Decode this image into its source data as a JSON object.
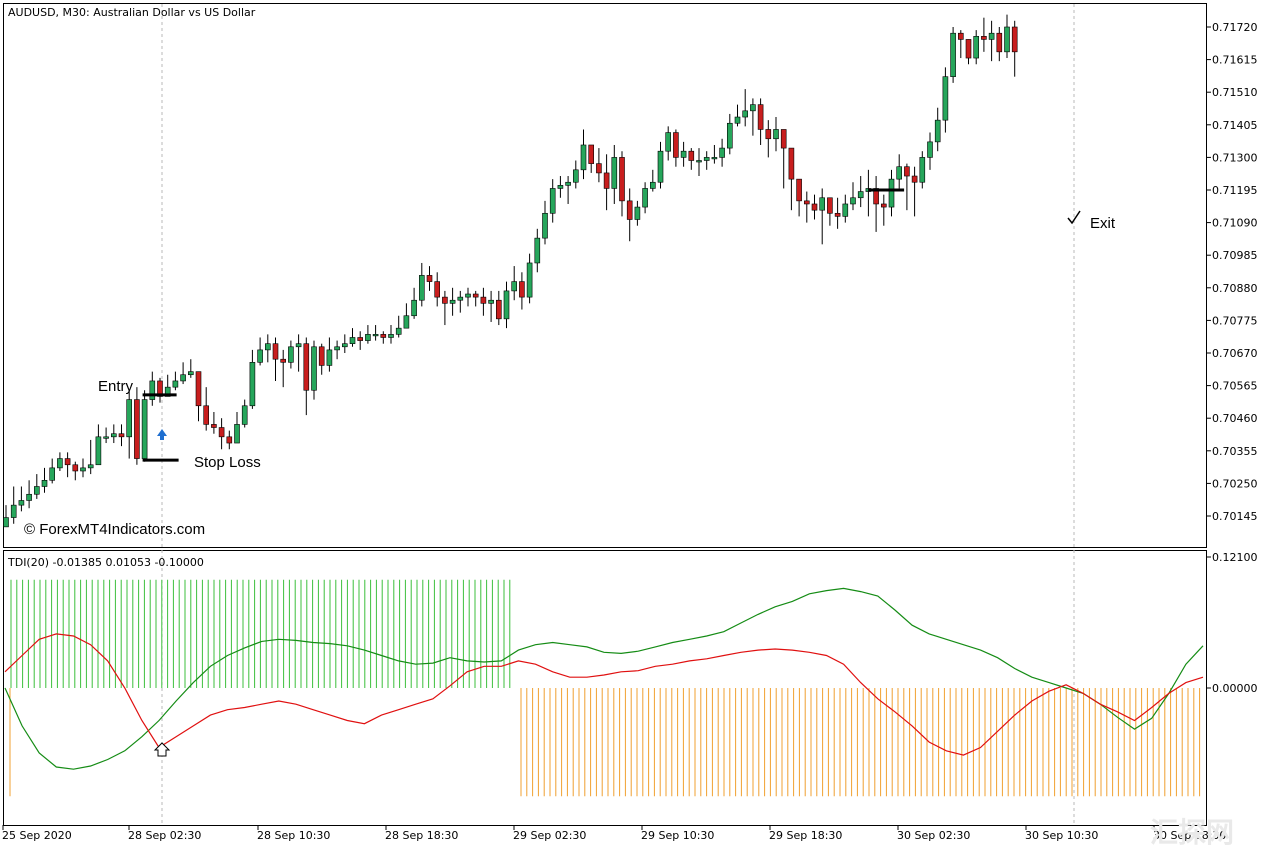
{
  "chart_data": [
    {
      "type": "candlestick",
      "title": "AUDUSD, M30:  Australian Dollar vs US Dollar",
      "ylim": [
        0.7009,
        0.71775
      ],
      "y_ticks": [
        "0.71720",
        "0.71615",
        "0.71510",
        "0.71405",
        "0.71300",
        "0.71195",
        "0.71090",
        "0.70985",
        "0.70880",
        "0.70775",
        "0.70670",
        "0.70565",
        "0.70460",
        "0.70355",
        "0.70250",
        "0.70145"
      ],
      "x_ticks": [
        "25 Sep 2020",
        "28 Sep 02:30",
        "28 Sep 10:30",
        "28 Sep 18:30",
        "29 Sep 02:30",
        "29 Sep 10:30",
        "29 Sep 18:30",
        "30 Sep 02:30",
        "30 Sep 10:30",
        "30 Sep 18:30"
      ],
      "series": [
        {
          "name": "price",
          "close": [
            0.7014,
            0.7018,
            0.70195,
            0.70215,
            0.7024,
            0.7026,
            0.703,
            0.7033,
            0.7031,
            0.7029,
            0.703,
            0.7031,
            0.704,
            0.704,
            0.7041,
            0.704,
            0.7052,
            0.7033,
            0.7052,
            0.7058,
            0.7053,
            0.7056,
            0.7058,
            0.706,
            0.7061,
            0.705,
            0.7044,
            0.7043,
            0.704,
            0.7038,
            0.7044,
            0.705,
            0.7064,
            0.7068,
            0.707,
            0.7065,
            0.7064,
            0.7069,
            0.707,
            0.7055,
            0.7069,
            0.7063,
            0.7068,
            0.7069,
            0.707,
            0.7072,
            0.7071,
            0.7073,
            0.7073,
            0.7072,
            0.7073,
            0.7075,
            0.7079,
            0.7084,
            0.7092,
            0.709,
            0.7085,
            0.7083,
            0.7084,
            0.7085,
            0.7086,
            0.7085,
            0.7083,
            0.7084,
            0.7078,
            0.7087,
            0.709,
            0.7085,
            0.7096,
            0.7104,
            0.7112,
            0.712,
            0.7121,
            0.7122,
            0.7126,
            0.7134,
            0.7128,
            0.7125,
            0.712,
            0.713,
            0.7116,
            0.711,
            0.7114,
            0.712,
            0.7122,
            0.7132,
            0.7138,
            0.713,
            0.7132,
            0.7129,
            0.7129,
            0.713,
            0.713,
            0.7133,
            0.7141,
            0.7143,
            0.7145,
            0.7147,
            0.7139,
            0.7136,
            0.7139,
            0.7133,
            0.7123,
            0.7116,
            0.7115,
            0.7113,
            0.7117,
            0.7112,
            0.7111,
            0.7115,
            0.7117,
            0.7119,
            0.712,
            0.7115,
            0.7114,
            0.7123,
            0.7127,
            0.7124,
            0.7122,
            0.713,
            0.7135,
            0.7142,
            0.7156,
            0.717,
            0.7168,
            0.7162,
            0.7169,
            0.7168,
            0.717,
            0.7164,
            0.7172,
            0.7164
          ]
        },
        {
          "name": "upper",
          "values": [
            0.7018,
            0.7024,
            0.7024,
            0.7026,
            0.7028,
            0.703,
            0.7033,
            0.7035,
            0.7035,
            0.7032,
            0.7033,
            0.7039,
            0.7044,
            0.7043,
            0.7044,
            0.7044,
            0.7055,
            0.7056,
            0.7055,
            0.7061,
            0.7059,
            0.706,
            0.7061,
            0.7064,
            0.7065,
            0.706,
            0.7056,
            0.7048,
            0.7046,
            0.7042,
            0.7048,
            0.7052,
            0.7068,
            0.7072,
            0.7073,
            0.7072,
            0.7068,
            0.7071,
            0.7073,
            0.7072,
            0.7071,
            0.707,
            0.7072,
            0.7071,
            0.7073,
            0.7075,
            0.7074,
            0.7076,
            0.7076,
            0.7074,
            0.7076,
            0.7079,
            0.7083,
            0.7088,
            0.7096,
            0.7095,
            0.7093,
            0.7087,
            0.7088,
            0.7087,
            0.7088,
            0.7087,
            0.7088,
            0.7087,
            0.7087,
            0.709,
            0.7095,
            0.7093,
            0.7099,
            0.7107,
            0.7116,
            0.7123,
            0.7124,
            0.7124,
            0.7129,
            0.7139,
            0.7134,
            0.7133,
            0.7131,
            0.7134,
            0.7132,
            0.712,
            0.7116,
            0.7122,
            0.7126,
            0.7135,
            0.714,
            0.7139,
            0.7135,
            0.7133,
            0.7133,
            0.7132,
            0.7134,
            0.7136,
            0.7144,
            0.7147,
            0.7152,
            0.7149,
            0.7149,
            0.7142,
            0.7143,
            0.7138,
            0.7133,
            0.712,
            0.7119,
            0.7118,
            0.712,
            0.7115,
            0.7117,
            0.7118,
            0.7122,
            0.7124,
            0.7126,
            0.7124,
            0.7118,
            0.7126,
            0.7131,
            0.7128,
            0.7127,
            0.7132,
            0.7138,
            0.7146,
            0.7159,
            0.7172,
            0.7171,
            0.7168,
            0.7171,
            0.7175,
            0.7174,
            0.7172,
            0.7176,
            0.7174
          ]
        },
        {
          "name": "lower",
          "values": [
            0.7011,
            0.7012,
            0.7016,
            0.7017,
            0.702,
            0.7022,
            0.7025,
            0.7029,
            0.7027,
            0.7026,
            0.7027,
            0.7028,
            0.7032,
            0.7038,
            0.7038,
            0.7037,
            0.7033,
            0.7031,
            0.7032,
            0.705,
            0.7051,
            0.7053,
            0.7055,
            0.7057,
            0.7059,
            0.7045,
            0.7042,
            0.7041,
            0.7036,
            0.7036,
            0.7038,
            0.7043,
            0.7049,
            0.7063,
            0.7064,
            0.7058,
            0.7056,
            0.7062,
            0.7061,
            0.7047,
            0.7052,
            0.706,
            0.7061,
            0.7065,
            0.7067,
            0.7069,
            0.7068,
            0.707,
            0.7071,
            0.707,
            0.707,
            0.7072,
            0.7075,
            0.7078,
            0.7082,
            0.7087,
            0.7082,
            0.7076,
            0.7079,
            0.708,
            0.7082,
            0.7082,
            0.7079,
            0.7077,
            0.7076,
            0.7075,
            0.7084,
            0.7081,
            0.7083,
            0.7093,
            0.7102,
            0.7109,
            0.7117,
            0.7115,
            0.712,
            0.7123,
            0.7125,
            0.7122,
            0.7113,
            0.7115,
            0.7111,
            0.7103,
            0.7108,
            0.7112,
            0.7119,
            0.712,
            0.7129,
            0.7127,
            0.7127,
            0.7126,
            0.7124,
            0.7126,
            0.7128,
            0.7127,
            0.7131,
            0.714,
            0.714,
            0.7137,
            0.7134,
            0.713,
            0.7132,
            0.712,
            0.7113,
            0.7111,
            0.7109,
            0.711,
            0.7102,
            0.7108,
            0.7107,
            0.7109,
            0.7113,
            0.7114,
            0.7111,
            0.7106,
            0.7108,
            0.7111,
            0.712,
            0.7113,
            0.7111,
            0.712,
            0.7126,
            0.7132,
            0.7138,
            0.7154,
            0.7162,
            0.716,
            0.716,
            0.7164,
            0.7161,
            0.7161,
            0.7162,
            0.7156
          ]
        }
      ],
      "annotations": {
        "entry": {
          "text": "Entry",
          "price": 0.70535,
          "bar": 18
        },
        "stop_loss": {
          "text": "Stop Loss",
          "price": 0.70325,
          "bar": 18
        },
        "exit": {
          "text": "Exit",
          "price": 0.71195,
          "bar": 113
        },
        "watermark": "© ForexMT4Indicators.com",
        "corner_watermark": "汇探网"
      },
      "colors": {
        "bull": "#26a65b",
        "bear": "#c81e1e"
      }
    },
    {
      "type": "line",
      "title": "TDI(20) -0.01385 0.01053 -0.10000",
      "ylim": [
        -0.15,
        0.12
      ],
      "y_ticks": [
        "0.12100",
        "0.00000"
      ],
      "series": [
        {
          "name": "green",
          "values": [
            0.0,
            -0.035,
            -0.06,
            -0.073,
            -0.075,
            -0.072,
            -0.066,
            -0.058,
            -0.045,
            -0.03,
            -0.012,
            0.005,
            0.02,
            0.03,
            0.037,
            0.043,
            0.045,
            0.044,
            0.042,
            0.041,
            0.039,
            0.035,
            0.03,
            0.025,
            0.022,
            0.023,
            0.028,
            0.025,
            0.024,
            0.025,
            0.035,
            0.04,
            0.042,
            0.04,
            0.038,
            0.033,
            0.032,
            0.034,
            0.038,
            0.042,
            0.045,
            0.048,
            0.052,
            0.06,
            0.068,
            0.075,
            0.08,
            0.087,
            0.09,
            0.092,
            0.089,
            0.085,
            0.072,
            0.058,
            0.05,
            0.045,
            0.04,
            0.035,
            0.028,
            0.018,
            0.01,
            0.005,
            0.0,
            -0.005,
            -0.015,
            -0.027,
            -0.038,
            -0.028,
            -0.005,
            0.022,
            0.039
          ]
        },
        {
          "name": "red",
          "values": [
            0.015,
            0.03,
            0.045,
            0.05,
            0.048,
            0.04,
            0.025,
            0.0,
            -0.03,
            -0.055,
            -0.045,
            -0.035,
            -0.025,
            -0.02,
            -0.018,
            -0.015,
            -0.012,
            -0.015,
            -0.02,
            -0.025,
            -0.03,
            -0.033,
            -0.025,
            -0.02,
            -0.015,
            -0.01,
            0.002,
            0.015,
            0.02,
            0.02,
            0.025,
            0.022,
            0.015,
            0.01,
            0.01,
            0.012,
            0.015,
            0.016,
            0.02,
            0.022,
            0.025,
            0.027,
            0.03,
            0.033,
            0.035,
            0.036,
            0.035,
            0.033,
            0.03,
            0.022,
            0.005,
            -0.01,
            -0.022,
            -0.035,
            -0.05,
            -0.058,
            -0.062,
            -0.055,
            -0.04,
            -0.025,
            -0.012,
            -0.003,
            0.003,
            -0.005,
            -0.015,
            -0.022,
            -0.03,
            -0.018,
            -0.005,
            0.005,
            0.01
          ]
        },
        {
          "name": "green_histogram",
          "values": [
            0.1
          ]
        },
        {
          "name": "orange_histogram",
          "values": [
            -0.1
          ]
        }
      ],
      "colors": {
        "green_line": "#158c15",
        "red_line": "#e01010",
        "green_hist": "#3cbf3c",
        "orange_hist": "#f0a030"
      }
    }
  ]
}
